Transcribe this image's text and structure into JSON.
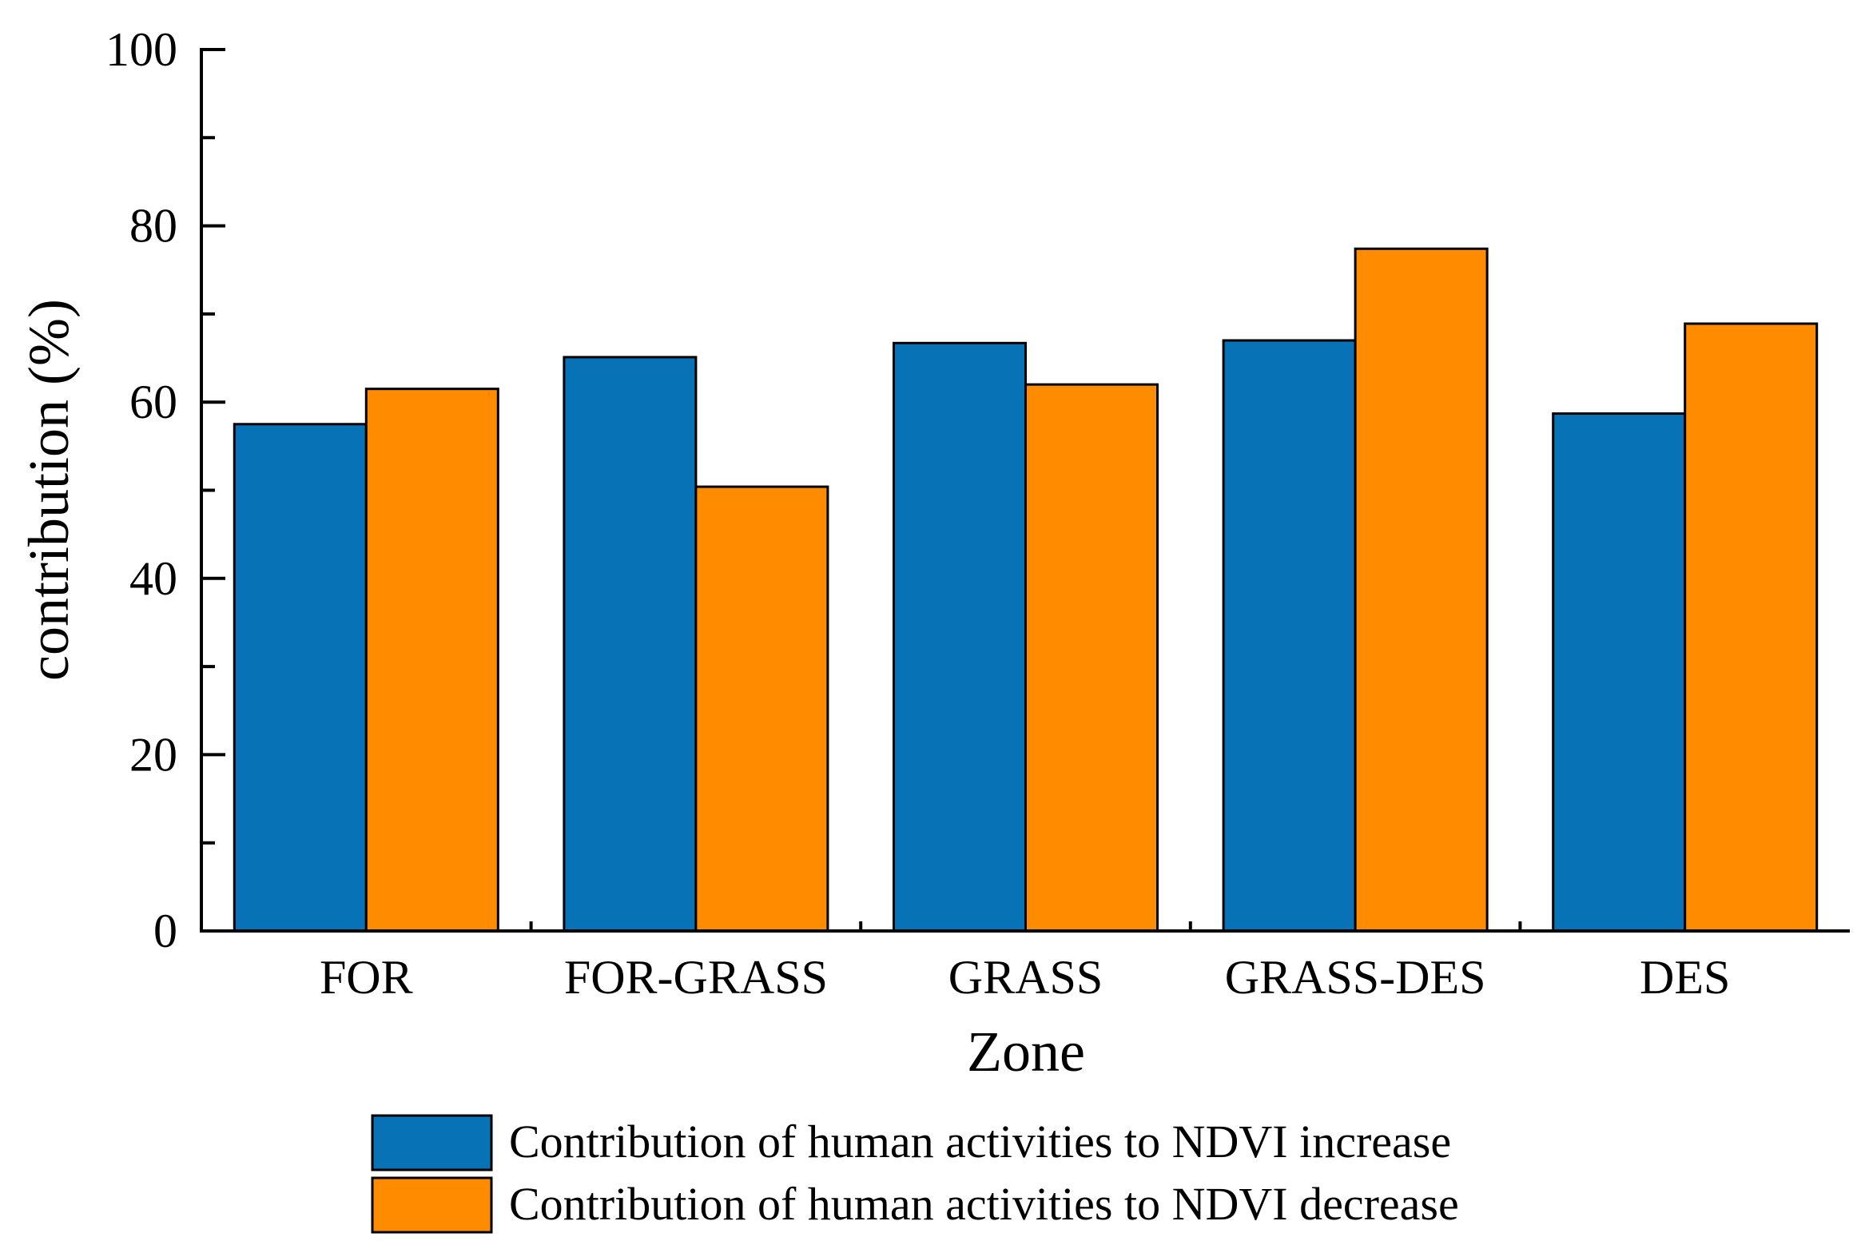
{
  "chart_data": {
    "type": "bar",
    "title": "",
    "xlabel": "Zone",
    "ylabel": "contribution (%)",
    "ylim": [
      0,
      100
    ],
    "yticks": [
      0,
      20,
      40,
      60,
      80,
      100
    ],
    "categories": [
      "FOR",
      "FOR-GRASS",
      "GRASS",
      "GRASS-DES",
      "DES"
    ],
    "series": [
      {
        "name": "Contribution of human activities to NDVI increase",
        "color": "#0872b7",
        "values": [
          57.5,
          65.1,
          66.7,
          67.0,
          58.7
        ]
      },
      {
        "name": "Contribution of human activities to NDVI decrease",
        "color": "#ff8c00",
        "values": [
          61.5,
          50.4,
          62.0,
          77.4,
          68.9
        ]
      }
    ],
    "grid": false,
    "legend": "bottom"
  }
}
